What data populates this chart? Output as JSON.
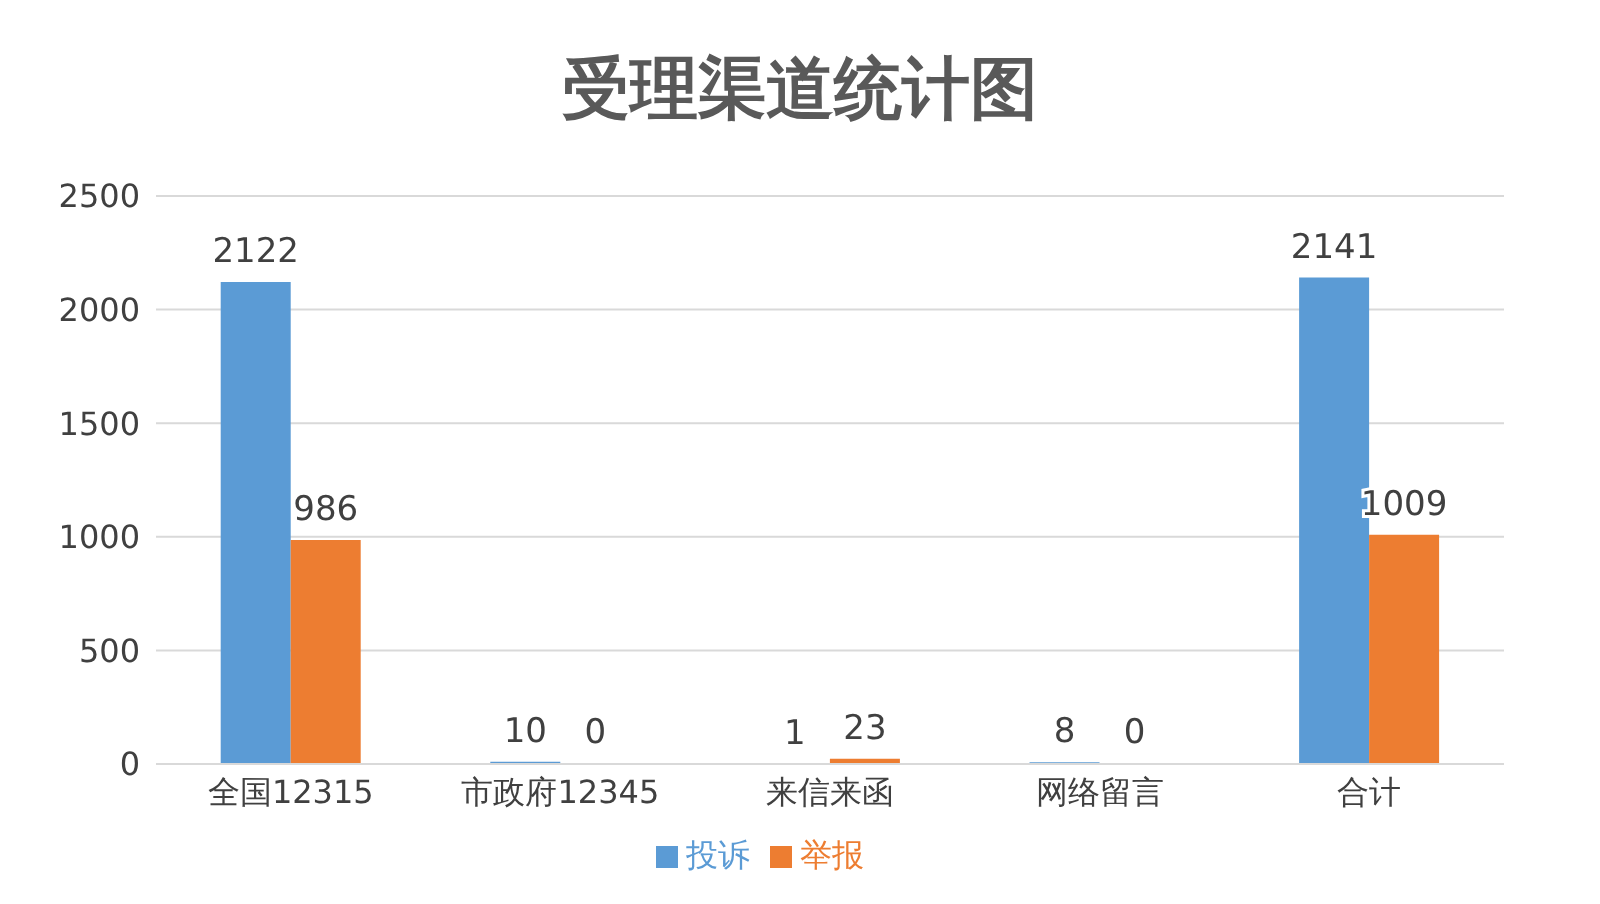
{
  "chart_data": {
    "type": "bar",
    "title": "受理渠道统计图",
    "categories": [
      "全国12315",
      "市政府12345",
      "来信来函",
      "网络留言",
      "合计"
    ],
    "series": [
      {
        "name": "投诉",
        "color": "#5b9bd5",
        "values": [
          2122,
          10,
          1,
          8,
          2141
        ]
      },
      {
        "name": "举报",
        "color": "#ed7d31",
        "values": [
          986,
          0,
          23,
          0,
          1009
        ]
      }
    ],
    "ylim": [
      0,
      2500
    ],
    "yticks": [
      0,
      500,
      1000,
      1500,
      2000,
      2500
    ],
    "grid": "y",
    "legend": "bottom",
    "data_labels": true
  }
}
